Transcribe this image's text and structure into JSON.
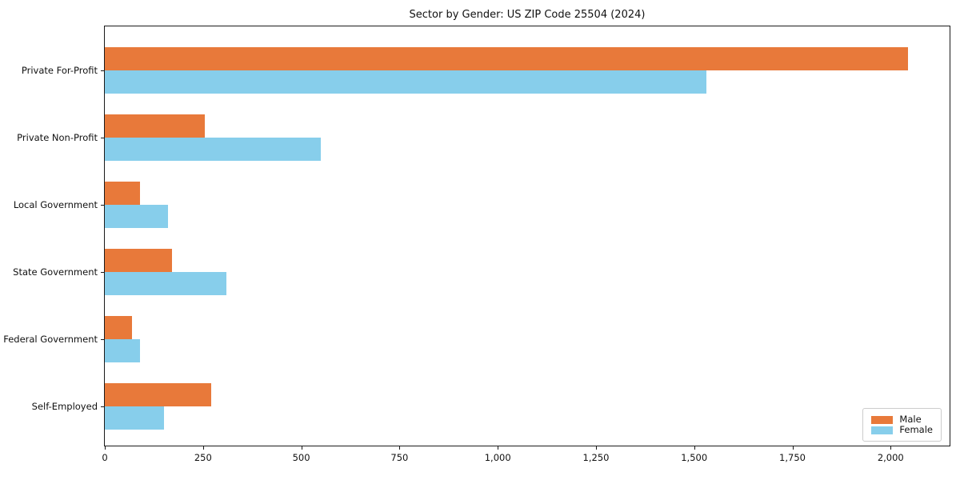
{
  "chart_data": {
    "type": "bar",
    "orientation": "horizontal",
    "title": "Sector by Gender: US ZIP Code 25504 (2024)",
    "xlabel": "",
    "ylabel": "",
    "categories": [
      "Private For-Profit",
      "Private Non-Profit",
      "Local Government",
      "State Government",
      "Federal Government",
      "Self-Employed"
    ],
    "series": [
      {
        "name": "Male",
        "color": "#e8793a",
        "values": [
          2045,
          255,
          90,
          170,
          70,
          270
        ]
      },
      {
        "name": "Female",
        "color": "#87ceeb",
        "values": [
          1530,
          550,
          160,
          310,
          90,
          150
        ]
      }
    ],
    "xlim": [
      0,
      2150
    ],
    "xticks": [
      0,
      250,
      500,
      750,
      1000,
      1250,
      1500,
      1750,
      2000
    ],
    "xtick_labels": [
      "0",
      "250",
      "500",
      "750",
      "1,000",
      "1,250",
      "1,500",
      "1,750",
      "2,000"
    ],
    "grid": false,
    "legend_position": "lower right",
    "background_color": "#ffffff",
    "axis_color": "#1a1a1a"
  }
}
